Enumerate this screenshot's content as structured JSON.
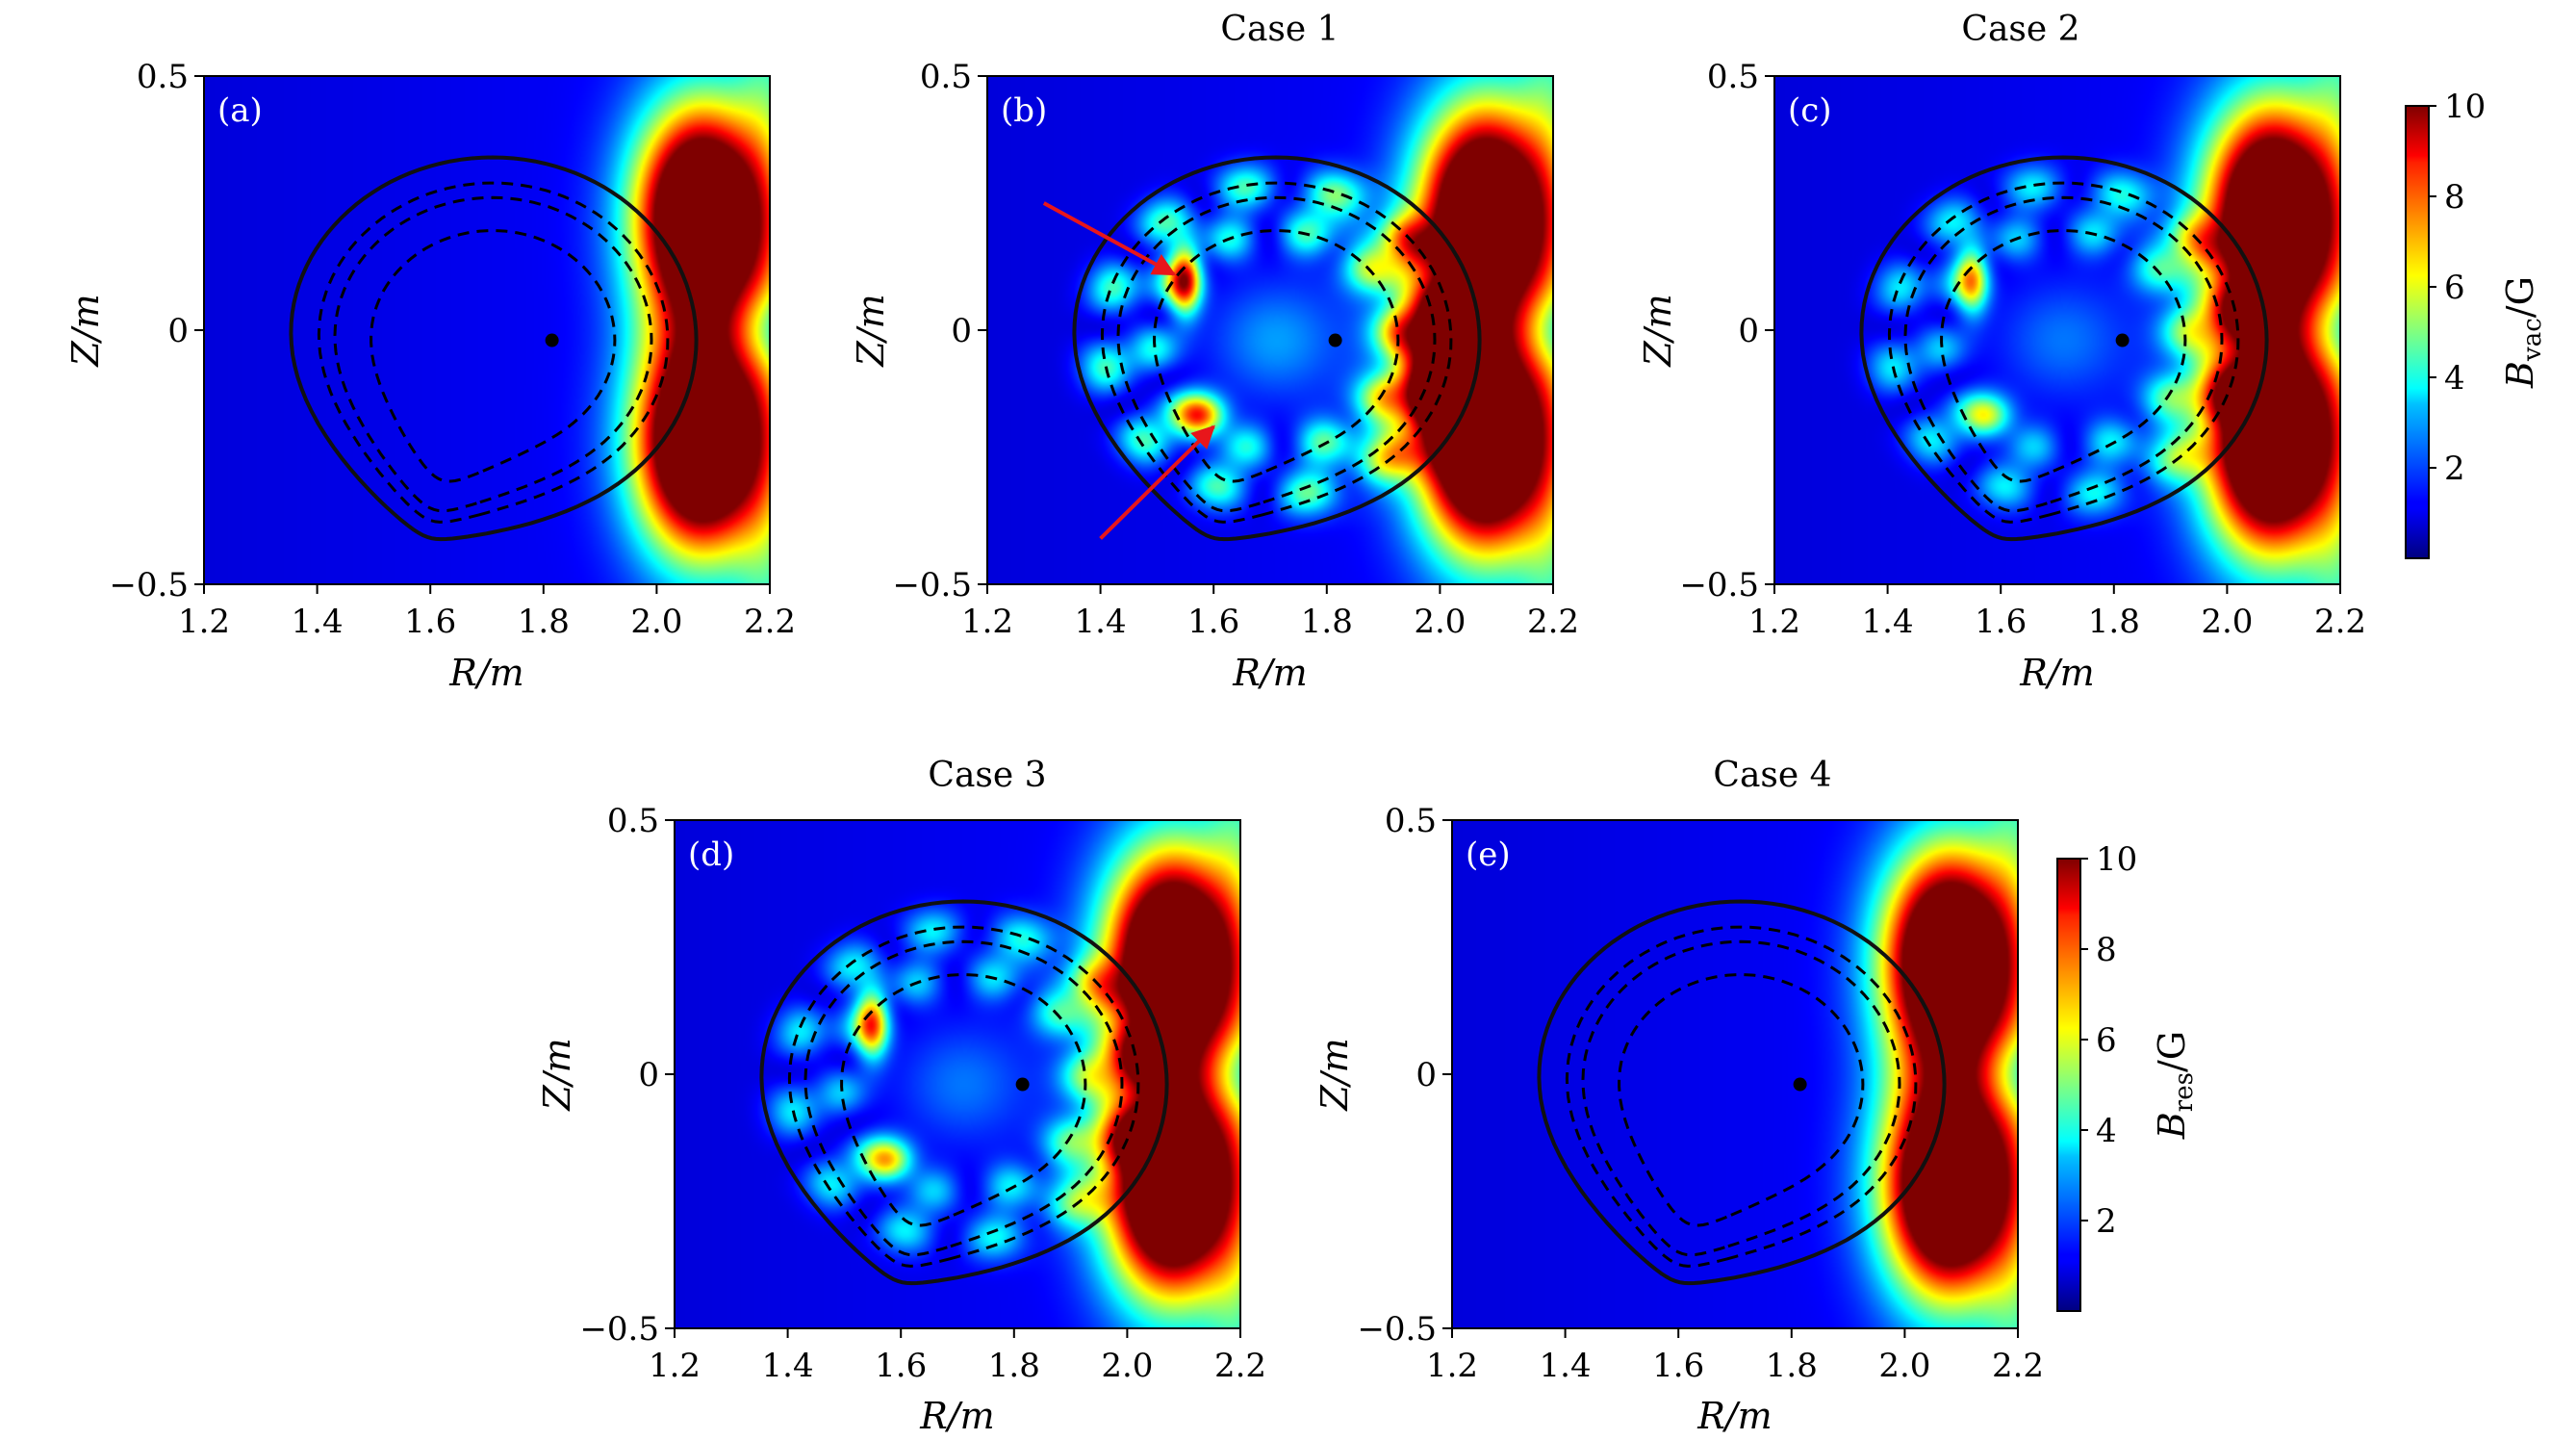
{
  "chart_data": [
    {
      "type": "heatmap",
      "id": "a",
      "panel_label": "(a)",
      "title": "",
      "xlabel": "R/m",
      "ylabel": "Z/m",
      "xlim": [
        1.2,
        2.2
      ],
      "ylim": [
        -0.5,
        0.5
      ],
      "xticks": [
        "1.2",
        "1.4",
        "1.6",
        "1.8",
        "2.0",
        "2.2"
      ],
      "yticks": [
        "0.5",
        "0",
        "−0.5"
      ],
      "colorbar": "vac",
      "pattern": "none",
      "hot_spots": [
        {
          "R": 2.08,
          "Z": 0.22,
          "sR": 0.08,
          "sZ": 0.15,
          "A": 15
        },
        {
          "R": 2.08,
          "Z": -0.22,
          "sR": 0.08,
          "sZ": 0.15,
          "A": 15
        }
      ]
    },
    {
      "type": "heatmap",
      "id": "b",
      "panel_label": "(b)",
      "title": "Case 1",
      "xlabel": "R/m",
      "ylabel": "Z/m",
      "xlim": [
        1.2,
        2.2
      ],
      "ylim": [
        -0.5,
        0.5
      ],
      "xticks": [
        "1.2",
        "1.4",
        "1.6",
        "1.8",
        "2.0",
        "2.2"
      ],
      "yticks": [
        "0.5",
        "0",
        "−0.5"
      ],
      "colorbar": "vac",
      "pattern": "strong",
      "arrows": [
        {
          "from": [
            1.3,
            0.25
          ],
          "to": [
            1.53,
            0.11
          ]
        },
        {
          "from": [
            1.4,
            -0.41
          ],
          "to": [
            1.6,
            -0.19
          ]
        }
      ],
      "hot_spots": [
        {
          "R": 2.08,
          "Z": 0.22,
          "sR": 0.08,
          "sZ": 0.15,
          "A": 15
        },
        {
          "R": 2.08,
          "Z": -0.22,
          "sR": 0.08,
          "sZ": 0.15,
          "A": 15
        },
        {
          "R": 2.0,
          "Z": -0.08,
          "sR": 0.05,
          "sZ": 0.1,
          "A": 5
        },
        {
          "R": 1.55,
          "Z": 0.1,
          "sR": 0.02,
          "sZ": 0.05,
          "A": 7
        },
        {
          "R": 1.58,
          "Z": -0.17,
          "sR": 0.03,
          "sZ": 0.03,
          "A": 6
        }
      ]
    },
    {
      "type": "heatmap",
      "id": "c",
      "panel_label": "(c)",
      "title": "Case 2",
      "xlabel": "R/m",
      "ylabel": "Z/m",
      "xlim": [
        1.2,
        2.2
      ],
      "ylim": [
        -0.5,
        0.5
      ],
      "xticks": [
        "1.2",
        "1.4",
        "1.6",
        "1.8",
        "2.0",
        "2.2"
      ],
      "yticks": [
        "0.5",
        "0",
        "−0.5"
      ],
      "colorbar": "vac",
      "pattern": "medium",
      "hot_spots": [
        {
          "R": 2.08,
          "Z": 0.22,
          "sR": 0.08,
          "sZ": 0.15,
          "A": 15
        },
        {
          "R": 2.08,
          "Z": -0.22,
          "sR": 0.08,
          "sZ": 0.15,
          "A": 15
        },
        {
          "R": 1.55,
          "Z": 0.1,
          "sR": 0.02,
          "sZ": 0.05,
          "A": 5
        },
        {
          "R": 1.58,
          "Z": -0.17,
          "sR": 0.03,
          "sZ": 0.03,
          "A": 4
        }
      ]
    },
    {
      "type": "heatmap",
      "id": "d",
      "panel_label": "(d)",
      "title": "Case 3",
      "xlabel": "R/m",
      "ylabel": "Z/m",
      "xlim": [
        1.2,
        2.2
      ],
      "ylim": [
        -0.5,
        0.5
      ],
      "xticks": [
        "1.2",
        "1.4",
        "1.6",
        "1.8",
        "2.0",
        "2.2"
      ],
      "yticks": [
        "0.5",
        "0",
        "−0.5"
      ],
      "colorbar": "res",
      "pattern": "medium",
      "hot_spots": [
        {
          "R": 2.08,
          "Z": 0.22,
          "sR": 0.08,
          "sZ": 0.15,
          "A": 15
        },
        {
          "R": 2.08,
          "Z": -0.22,
          "sR": 0.08,
          "sZ": 0.15,
          "A": 15
        },
        {
          "R": 1.55,
          "Z": 0.1,
          "sR": 0.02,
          "sZ": 0.05,
          "A": 6
        },
        {
          "R": 1.58,
          "Z": -0.17,
          "sR": 0.03,
          "sZ": 0.03,
          "A": 5
        }
      ]
    },
    {
      "type": "heatmap",
      "id": "e",
      "panel_label": "(e)",
      "title": "Case 4",
      "xlabel": "R/m",
      "ylabel": "Z/m",
      "xlim": [
        1.2,
        2.2
      ],
      "ylim": [
        -0.5,
        0.5
      ],
      "xticks": [
        "1.2",
        "1.4",
        "1.6",
        "1.8",
        "2.0",
        "2.2"
      ],
      "yticks": [
        "0.5",
        "0",
        "−0.5"
      ],
      "colorbar": "res",
      "pattern": "none",
      "hot_spots": [
        {
          "R": 2.08,
          "Z": 0.22,
          "sR": 0.08,
          "sZ": 0.15,
          "A": 15
        },
        {
          "R": 2.08,
          "Z": -0.22,
          "sR": 0.08,
          "sZ": 0.15,
          "A": 15
        }
      ]
    }
  ],
  "colorbars": [
    {
      "id": "vac",
      "label_main": "B",
      "label_sub": "vac",
      "label_unit": "/G",
      "vmin": 0,
      "vmax": 10,
      "ticks": [
        "2",
        "4",
        "6",
        "8",
        "10"
      ],
      "colormap": "jet"
    },
    {
      "id": "res",
      "label_main": "B",
      "label_sub": "res",
      "label_unit": "/G",
      "vmin": 0,
      "vmax": 10,
      "ticks": [
        "2",
        "4",
        "6",
        "8",
        "10"
      ],
      "colormap": "jet"
    }
  ],
  "plasma": {
    "axis": {
      "R": 1.815,
      "Z": -0.02
    },
    "boundary_center": {
      "R": 1.71,
      "Z": -0.02
    },
    "boundary_radius": 0.36,
    "xpoint": {
      "R": 1.62,
      "Z": -0.455
    },
    "flux_surfaces": [
      0.86,
      0.78,
      0.6
    ],
    "arrow_color": "#e8161b"
  }
}
